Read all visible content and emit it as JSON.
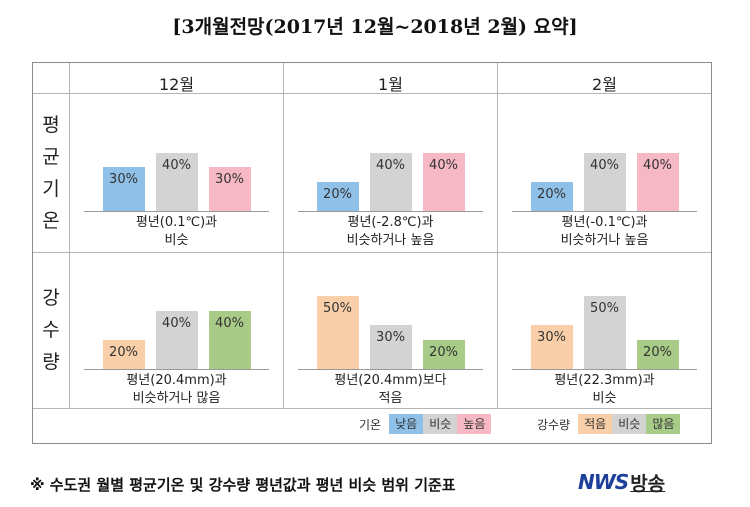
{
  "title": "[3개월전망(2017년 12월~2018년 2월) 요약]",
  "months": [
    "12월",
    "1월",
    "2월"
  ],
  "row_labels": {
    "temperature": [
      "평",
      "균",
      "기",
      "온"
    ],
    "precipitation": [
      "강",
      "수",
      "량"
    ]
  },
  "colors": {
    "low_temp": "#8fc0e8",
    "similar": "#d3d3d3",
    "high_temp": "#f6b8c4",
    "low_precip": "#f8cfa8",
    "high_precip": "#a8cc88"
  },
  "chart_data": [
    {
      "type": "bar",
      "row": "평균기온",
      "categories": [
        "낮음",
        "비슷",
        "높음"
      ],
      "panels": [
        {
          "month": "12월",
          "values": [
            30,
            40,
            30
          ],
          "labels": [
            "30%",
            "40%",
            "30%"
          ],
          "desc": [
            "평년(0.1℃)과",
            "비슷"
          ]
        },
        {
          "month": "1월",
          "values": [
            20,
            40,
            40
          ],
          "labels": [
            "20%",
            "40%",
            "40%"
          ],
          "desc": [
            "평년(-2.8℃)과",
            "비슷하거나 높음"
          ]
        },
        {
          "month": "2월",
          "values": [
            20,
            40,
            40
          ],
          "labels": [
            "20%",
            "40%",
            "40%"
          ],
          "desc": [
            "평년(-0.1℃)과",
            "비슷하거나 높음"
          ]
        }
      ]
    },
    {
      "type": "bar",
      "row": "강수량",
      "categories": [
        "적음",
        "비슷",
        "많음"
      ],
      "panels": [
        {
          "month": "12월",
          "values": [
            20,
            40,
            40
          ],
          "labels": [
            "20%",
            "40%",
            "40%"
          ],
          "desc": [
            "평년(20.4mm)과",
            "비슷하거나 많음"
          ]
        },
        {
          "month": "1월",
          "values": [
            50,
            30,
            20
          ],
          "labels": [
            "50%",
            "30%",
            "20%"
          ],
          "desc": [
            "평년(20.4mm)보다",
            "적음"
          ]
        },
        {
          "month": "2월",
          "values": [
            30,
            50,
            20
          ],
          "labels": [
            "30%",
            "50%",
            "20%"
          ],
          "desc": [
            "평년(22.3mm)과",
            "비슷"
          ]
        }
      ]
    }
  ],
  "legend": {
    "temp_label": "기온",
    "temp_items": [
      "낮음",
      "비슷",
      "높음"
    ],
    "precip_label": "강수량",
    "precip_items": [
      "적음",
      "비슷",
      "많음"
    ]
  },
  "footnote": "※ 수도권 월별 평균기온 및 강수량 평년값과 평년 비슷 범위 기준표",
  "logo": {
    "nws": "NWS",
    "broadcast": "방송"
  }
}
